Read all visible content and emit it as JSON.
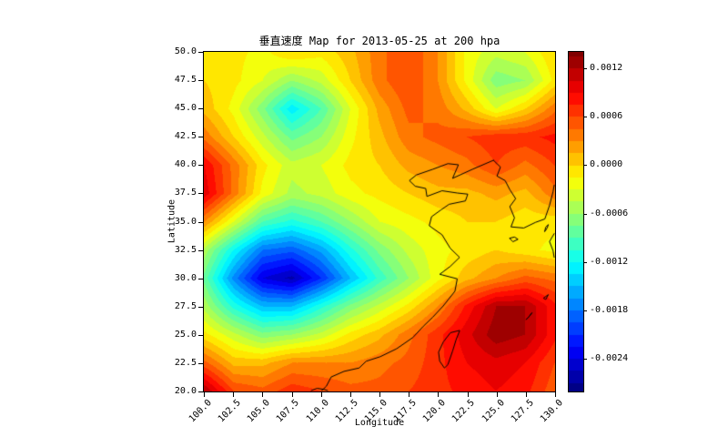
{
  "chart_data": {
    "type": "heatmap",
    "subtype": "filled-contour-map",
    "title": "垂直速度 Map for 2013-05-25 at 200 hpa",
    "xlabel": "Longitude",
    "ylabel": "Latitude",
    "x_range": [
      100.0,
      130.0
    ],
    "y_range": [
      20.0,
      50.0
    ],
    "colormap": "jet",
    "vmin": -0.0028,
    "vmax": 0.0014,
    "band_step": 0.00015,
    "grid": false,
    "x_ticks": [
      {
        "value": 100.0,
        "label": "100.0"
      },
      {
        "value": 102.5,
        "label": "102.5"
      },
      {
        "value": 105.0,
        "label": "105.0"
      },
      {
        "value": 107.5,
        "label": "107.5"
      },
      {
        "value": 110.0,
        "label": "110.0"
      },
      {
        "value": 112.5,
        "label": "112.5"
      },
      {
        "value": 115.0,
        "label": "115.0"
      },
      {
        "value": 117.5,
        "label": "117.5"
      },
      {
        "value": 120.0,
        "label": "120.0"
      },
      {
        "value": 122.5,
        "label": "122.5"
      },
      {
        "value": 125.0,
        "label": "125.0"
      },
      {
        "value": 127.5,
        "label": "127.5"
      },
      {
        "value": 130.0,
        "label": "130.0"
      }
    ],
    "y_ticks": [
      {
        "value": 50.0,
        "label": "50.0"
      },
      {
        "value": 47.5,
        "label": "47.5"
      },
      {
        "value": 45.0,
        "label": "45.0"
      },
      {
        "value": 42.5,
        "label": "42.5"
      },
      {
        "value": 40.0,
        "label": "40.0"
      },
      {
        "value": 37.5,
        "label": "37.5"
      },
      {
        "value": 35.0,
        "label": "35.0"
      },
      {
        "value": 32.5,
        "label": "32.5"
      },
      {
        "value": 30.0,
        "label": "30.0"
      },
      {
        "value": 27.5,
        "label": "27.5"
      },
      {
        "value": 25.0,
        "label": "25.0"
      },
      {
        "value": 22.5,
        "label": "22.5"
      },
      {
        "value": 20.0,
        "label": "20.0"
      }
    ],
    "colorbar_ticks": [
      {
        "value": 0.0012,
        "label": "0.0012"
      },
      {
        "value": 0.0006,
        "label": "0.0006"
      },
      {
        "value": 0.0,
        "label": "0.0000"
      },
      {
        "value": -0.0006,
        "label": "-0.0006"
      },
      {
        "value": -0.0012,
        "label": "-0.0012"
      },
      {
        "value": -0.0018,
        "label": "-0.0018"
      },
      {
        "value": -0.0024,
        "label": "-0.0024"
      }
    ],
    "lon": [
      100,
      102.5,
      105,
      107.5,
      110,
      112.5,
      115,
      117.5,
      120,
      122.5,
      125,
      127.5,
      130
    ],
    "lat": [
      50,
      47.5,
      45,
      42.5,
      40,
      37.5,
      35,
      32.5,
      30,
      27.5,
      25,
      22.5,
      20
    ],
    "values": [
      [
        -0.0001,
        -0.0001,
        -0.0002,
        0.0,
        -0.0001,
        0.0001,
        0.0004,
        0.0006,
        0.0003,
        -0.0002,
        -0.0004,
        -0.0003,
        0.0
      ],
      [
        0.0,
        -0.0001,
        -0.0003,
        -0.0006,
        -0.0004,
        0.0,
        0.0004,
        0.0006,
        0.0003,
        -0.0002,
        -0.0007,
        -0.0006,
        -0.0001
      ],
      [
        0.0001,
        -0.0002,
        -0.0007,
        -0.0013,
        -0.0009,
        -0.0003,
        0.0002,
        0.0005,
        0.0004,
        0.0001,
        -0.0003,
        0.0,
        0.0004
      ],
      [
        0.0004,
        0.0,
        -0.0004,
        -0.0008,
        -0.0006,
        -0.0002,
        0.0001,
        0.0004,
        0.0005,
        0.0006,
        0.0007,
        0.0007,
        0.0008
      ],
      [
        0.0009,
        0.0004,
        -0.0001,
        -0.0004,
        -0.0003,
        -0.0001,
        0.0,
        0.0002,
        0.0003,
        0.0004,
        0.0006,
        0.0004,
        0.0006
      ],
      [
        0.001,
        0.0004,
        -0.0002,
        -0.0005,
        -0.0004,
        -0.0002,
        -0.0001,
        0.0,
        0.0001,
        0.0001,
        0.0002,
        0.0001,
        0.0004
      ],
      [
        0.0003,
        -0.0003,
        -0.0009,
        -0.0011,
        -0.0009,
        -0.0006,
        -0.0003,
        -0.0002,
        -0.0001,
        0.0,
        0.0,
        -0.0001,
        -0.0001
      ],
      [
        -0.0005,
        -0.0012,
        -0.0018,
        -0.0019,
        -0.0016,
        -0.0011,
        -0.0007,
        -0.0004,
        -0.0002,
        -0.0001,
        0.0,
        -0.0001,
        -0.0002
      ],
      [
        -0.0008,
        -0.0017,
        -0.0024,
        -0.0026,
        -0.0021,
        -0.0015,
        -0.001,
        -0.0006,
        -0.0002,
        0.0001,
        0.0003,
        0.0005,
        0.0004
      ],
      [
        -0.0005,
        -0.0011,
        -0.0015,
        -0.0015,
        -0.0011,
        -0.0007,
        -0.0004,
        -0.0001,
        0.0003,
        0.0008,
        0.0012,
        0.0012,
        0.0008
      ],
      [
        -0.0001,
        -0.0004,
        -0.0007,
        -0.0006,
        -0.0004,
        -0.0001,
        0.0001,
        0.0004,
        0.0007,
        0.001,
        0.0013,
        0.0012,
        0.0008
      ],
      [
        0.0005,
        0.0001,
        0.0001,
        0.0003,
        0.0003,
        0.0003,
        0.0004,
        0.0005,
        0.0007,
        0.0009,
        0.001,
        0.0009,
        0.0006
      ],
      [
        0.0012,
        0.0006,
        0.0005,
        0.0007,
        0.0006,
        0.0005,
        0.0005,
        0.0006,
        0.0007,
        0.0008,
        0.0009,
        0.0008,
        0.0005
      ]
    ],
    "coastlines": [
      {
        "name": "china-mainland-coast",
        "closed": false,
        "points": [
          [
            124.8,
            40.4
          ],
          [
            123.0,
            39.6
          ],
          [
            121.3,
            38.8
          ],
          [
            121.8,
            40.0
          ],
          [
            120.9,
            40.1
          ],
          [
            119.6,
            39.6
          ],
          [
            118.2,
            39.1
          ],
          [
            117.6,
            38.6
          ],
          [
            118.1,
            38.1
          ],
          [
            119.0,
            37.9
          ],
          [
            119.1,
            37.2
          ],
          [
            120.4,
            37.7
          ],
          [
            121.7,
            37.5
          ],
          [
            122.6,
            37.4
          ],
          [
            122.4,
            36.8
          ],
          [
            121.0,
            36.5
          ],
          [
            120.3,
            36.0
          ],
          [
            119.5,
            35.4
          ],
          [
            119.3,
            34.6
          ],
          [
            120.4,
            33.8
          ],
          [
            121.1,
            32.6
          ],
          [
            121.9,
            31.8
          ],
          [
            121.1,
            31.0
          ],
          [
            120.2,
            30.3
          ],
          [
            121.7,
            29.9
          ],
          [
            121.5,
            28.8
          ],
          [
            120.5,
            27.5
          ],
          [
            119.6,
            26.5
          ],
          [
            118.8,
            25.7
          ],
          [
            117.9,
            24.7
          ],
          [
            116.5,
            23.7
          ],
          [
            115.1,
            23.0
          ],
          [
            113.9,
            22.6
          ],
          [
            113.3,
            22.0
          ],
          [
            112.0,
            21.7
          ],
          [
            110.9,
            21.2
          ],
          [
            110.5,
            20.4
          ],
          [
            110.1,
            20.0
          ]
        ]
      },
      {
        "name": "korea-coast",
        "closed": false,
        "points": [
          [
            124.8,
            40.4
          ],
          [
            125.4,
            39.8
          ],
          [
            125.1,
            39.0
          ],
          [
            125.8,
            38.6
          ],
          [
            126.2,
            37.8
          ],
          [
            126.7,
            37.0
          ],
          [
            126.2,
            36.3
          ],
          [
            126.6,
            35.3
          ],
          [
            126.3,
            34.5
          ],
          [
            127.4,
            34.4
          ],
          [
            128.4,
            34.9
          ],
          [
            129.2,
            35.2
          ],
          [
            129.6,
            36.4
          ],
          [
            129.9,
            37.6
          ],
          [
            130.0,
            38.2
          ]
        ]
      },
      {
        "name": "taiwan-island",
        "closed": true,
        "points": [
          [
            121.9,
            25.3
          ],
          [
            121.6,
            24.5
          ],
          [
            121.3,
            23.5
          ],
          [
            120.9,
            22.3
          ],
          [
            120.6,
            22.0
          ],
          [
            120.2,
            22.6
          ],
          [
            120.1,
            23.4
          ],
          [
            120.5,
            24.3
          ],
          [
            121.1,
            25.1
          ]
        ]
      },
      {
        "name": "hainan-north-coast",
        "closed": false,
        "points": [
          [
            109.2,
            20.0
          ],
          [
            109.7,
            20.2
          ],
          [
            110.3,
            20.1
          ],
          [
            110.6,
            20.0
          ]
        ]
      },
      {
        "name": "kyushu-west-coast",
        "closed": false,
        "points": [
          [
            130.0,
            33.9
          ],
          [
            129.6,
            33.2
          ],
          [
            129.9,
            32.4
          ],
          [
            130.0,
            31.8
          ]
        ]
      },
      {
        "name": "jeju-island",
        "closed": true,
        "points": [
          [
            126.2,
            33.5
          ],
          [
            126.6,
            33.6
          ],
          [
            126.9,
            33.4
          ],
          [
            126.5,
            33.2
          ]
        ]
      },
      {
        "name": "tsushima-island",
        "closed": true,
        "points": [
          [
            129.2,
            34.1
          ],
          [
            129.4,
            34.4
          ],
          [
            129.5,
            34.7
          ],
          [
            129.3,
            34.5
          ]
        ]
      },
      {
        "name": "okinawa-islands",
        "closed": true,
        "points": [
          [
            127.6,
            26.3
          ],
          [
            127.9,
            26.6
          ],
          [
            128.1,
            26.9
          ],
          [
            127.8,
            26.5
          ]
        ]
      },
      {
        "name": "amami-island",
        "closed": true,
        "points": [
          [
            129.1,
            28.2
          ],
          [
            129.5,
            28.5
          ],
          [
            129.3,
            28.1
          ]
        ]
      }
    ]
  }
}
